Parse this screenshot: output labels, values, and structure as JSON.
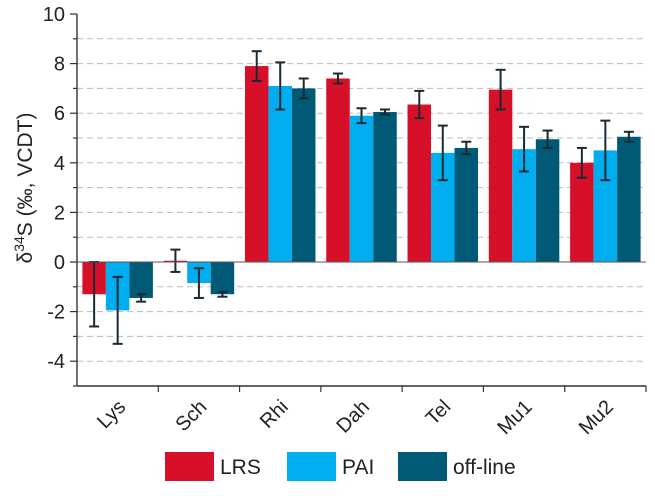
{
  "chart_data": {
    "type": "bar",
    "title": "",
    "xlabel": "",
    "ylabel": {
      "delta": "δ",
      "sup": "34",
      "rest": "S (‰, VCDT)"
    },
    "ylim": [
      -5,
      10
    ],
    "yticks": [
      -4,
      -2,
      0,
      2,
      4,
      6,
      8,
      10
    ],
    "grid": "horizontal dashed",
    "legend_placement": "bottom",
    "categories": [
      "Lys",
      "Sch",
      "Rhi",
      "Dah",
      "Tel",
      "Mu1",
      "Mu2"
    ],
    "series": [
      {
        "name": "LRS",
        "color": "#d7102a",
        "values": [
          -1.3,
          0.05,
          7.9,
          7.4,
          6.35,
          6.95,
          4.0
        ],
        "errors": [
          1.3,
          0.45,
          0.6,
          0.2,
          0.55,
          0.8,
          0.6
        ]
      },
      {
        "name": "PAI",
        "color": "#00adef",
        "values": [
          -1.95,
          -0.85,
          7.1,
          5.9,
          4.4,
          4.55,
          4.5
        ],
        "errors": [
          1.35,
          0.6,
          0.95,
          0.3,
          1.1,
          0.9,
          1.2
        ]
      },
      {
        "name": "off-line",
        "color": "#005a75",
        "values": [
          -1.45,
          -1.3,
          7.0,
          6.05,
          4.6,
          4.95,
          5.05
        ],
        "errors": [
          0.15,
          0.1,
          0.4,
          0.1,
          0.25,
          0.35,
          0.2
        ]
      }
    ]
  }
}
